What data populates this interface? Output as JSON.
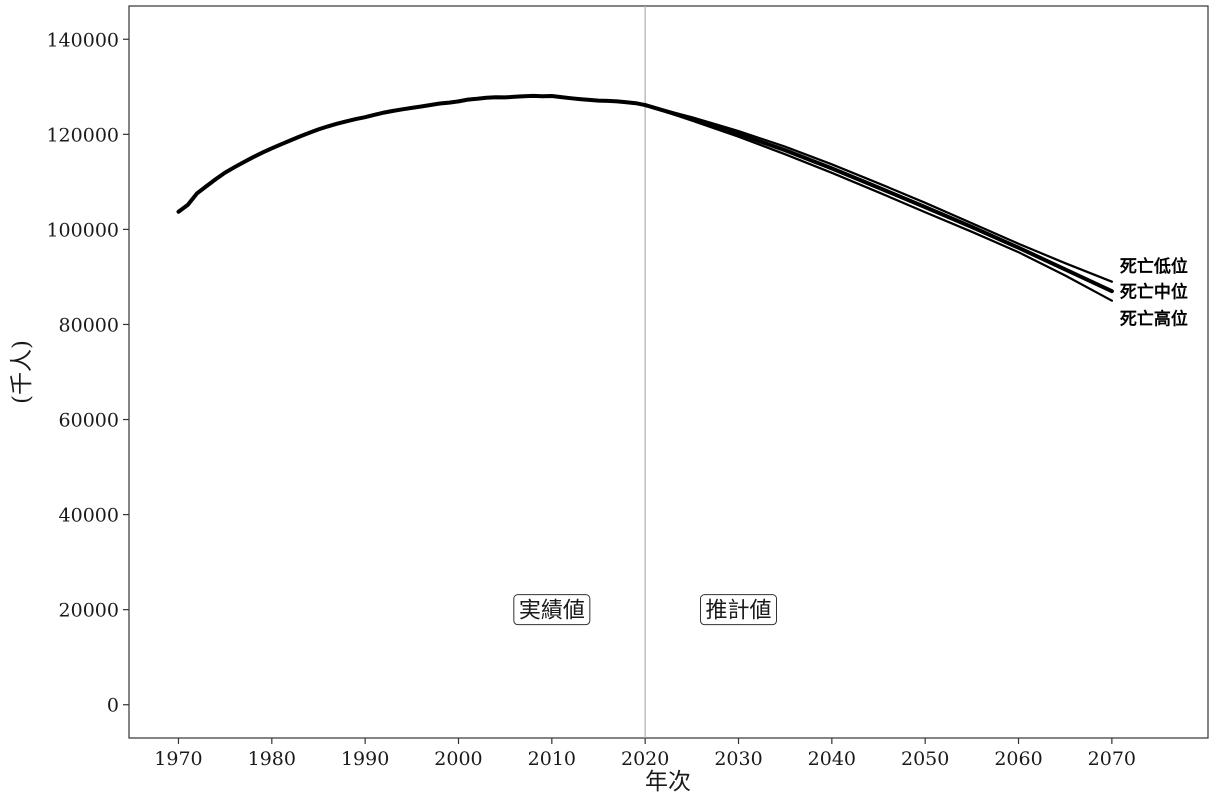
{
  "chart_data": {
    "type": "line",
    "xlabel": "年次",
    "ylabel": "(千人)",
    "xlim": [
      1964.7,
      2080.3
    ],
    "ylim": [
      -7000,
      147000
    ],
    "x_ticks": [
      1970,
      1980,
      1990,
      2000,
      2010,
      2020,
      2030,
      2040,
      2050,
      2060,
      2070
    ],
    "y_ticks": [
      0,
      20000,
      40000,
      60000,
      80000,
      100000,
      120000,
      140000
    ],
    "grid": false,
    "divider_x": 2020,
    "divider_color": "#b3b3b3",
    "region_labels": [
      {
        "text": "実績値",
        "x": 2010,
        "y": 20000
      },
      {
        "text": "推計値",
        "x": 2030,
        "y": 20000
      }
    ],
    "series": [
      {
        "role": "actual",
        "x": [
          1970,
          1971,
          1972,
          1973,
          1974,
          1975,
          1976,
          1977,
          1978,
          1979,
          1980,
          1981,
          1982,
          1983,
          1984,
          1985,
          1986,
          1987,
          1988,
          1989,
          1990,
          1991,
          1992,
          1993,
          1994,
          1995,
          1996,
          1997,
          1998,
          1999,
          2000,
          2001,
          2002,
          2003,
          2004,
          2005,
          2006,
          2007,
          2008,
          2009,
          2010,
          2011,
          2012,
          2013,
          2014,
          2015,
          2016,
          2017,
          2018,
          2019,
          2020
        ],
        "values": [
          103720,
          105145,
          107595,
          109104,
          110573,
          111940,
          113094,
          114165,
          115190,
          116155,
          117060,
          117902,
          118728,
          119536,
          120305,
          121049,
          121660,
          122239,
          122745,
          123205,
          123611,
          124101,
          124567,
          124938,
          125265,
          125570,
          125864,
          126166,
          126486,
          126686,
          126926,
          127316,
          127486,
          127694,
          127787,
          127768,
          127901,
          128033,
          128084,
          128032,
          128057,
          127834,
          127593,
          127414,
          127237,
          127095,
          127042,
          126919,
          126749,
          126555,
          126146
        ],
        "color": "#000000",
        "width": 4
      },
      {
        "name": "死亡低位",
        "x": [
          2020,
          2025,
          2030,
          2035,
          2040,
          2045,
          2050,
          2055,
          2060,
          2065,
          2070
        ],
        "values": [
          126146,
          123600,
          120700,
          117400,
          113700,
          109700,
          105600,
          101300,
          97000,
          92900,
          89000
        ],
        "color": "#000000",
        "width": 2.2
      },
      {
        "name": "死亡中位",
        "x": [
          2020,
          2025,
          2030,
          2035,
          2040,
          2045,
          2050,
          2055,
          2060,
          2065,
          2070
        ],
        "values": [
          126146,
          123262,
          120116,
          116639,
          112837,
          108801,
          104686,
          100508,
          96148,
          91587,
          87000
        ],
        "color": "#000000",
        "width": 4
      },
      {
        "name": "死亡高位",
        "x": [
          2020,
          2025,
          2030,
          2035,
          2040,
          2045,
          2050,
          2055,
          2060,
          2065,
          2070
        ],
        "values": [
          126146,
          122900,
          119500,
          115800,
          111900,
          107800,
          103600,
          99500,
          95200,
          90300,
          85000
        ],
        "color": "#000000",
        "width": 2.2
      }
    ],
    "series_label_positions": [
      {
        "name": "死亡低位",
        "y": 92300
      },
      {
        "name": "死亡中位",
        "y": 86900
      },
      {
        "name": "死亡高位",
        "y": 81300
      }
    ]
  }
}
